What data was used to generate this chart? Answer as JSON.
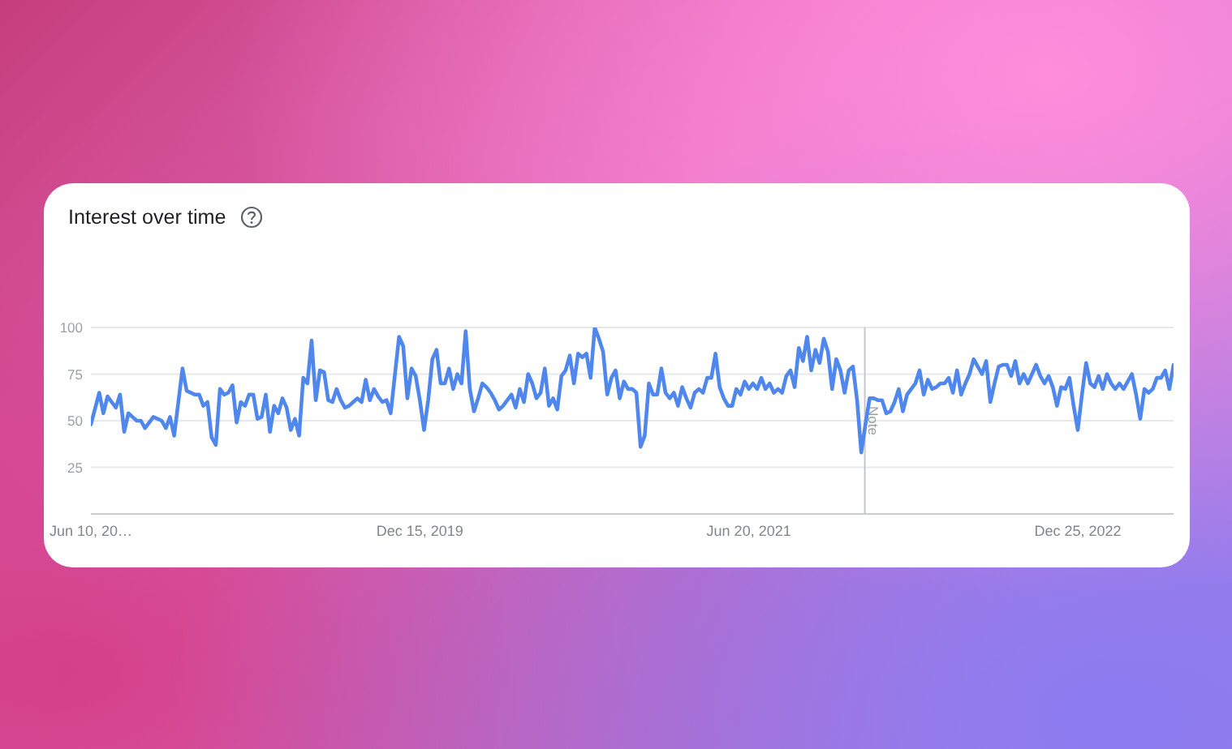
{
  "chart_data": {
    "type": "line",
    "title": "Interest over time",
    "x": [
      "2018-06-10",
      "2018-06-24",
      "2018-07-01",
      "2018-07-08",
      "2018-07-15",
      "2018-07-22",
      "2018-07-29",
      "2018-08-05",
      "2018-08-12",
      "2018-08-19",
      "2018-08-26",
      "2018-09-02",
      "2018-09-09",
      "2018-09-23",
      "2018-09-30",
      "2018-10-07",
      "2018-10-14",
      "2018-10-21",
      "2018-10-28",
      "2018-11-11",
      "2018-11-18",
      "2018-12-02",
      "2018-12-09",
      "2018-12-16",
      "2018-12-23",
      "2018-12-30",
      "2019-01-06",
      "2019-01-13",
      "2019-01-20",
      "2019-01-27",
      "2019-02-03",
      "2019-02-10",
      "2019-02-17",
      "2019-02-24",
      "2019-03-03",
      "2019-03-10",
      "2019-03-17",
      "2019-03-24",
      "2019-03-31",
      "2019-04-07",
      "2019-04-14",
      "2019-04-21",
      "2019-04-28",
      "2019-05-05",
      "2019-05-12",
      "2019-05-19",
      "2019-05-26",
      "2019-06-02",
      "2019-06-09",
      "2019-06-16",
      "2019-06-23",
      "2019-06-30",
      "2019-07-07",
      "2019-07-14",
      "2019-07-21",
      "2019-07-28",
      "2019-08-04",
      "2019-08-11",
      "2019-08-18",
      "2019-08-25",
      "2019-09-01",
      "2019-09-08",
      "2019-09-15",
      "2019-09-22",
      "2019-09-29",
      "2019-10-06",
      "2019-10-13",
      "2019-10-20",
      "2019-10-27",
      "2019-11-10",
      "2019-11-17",
      "2019-11-24",
      "2019-12-01",
      "2019-12-08",
      "2019-12-15",
      "2019-12-22",
      "2019-12-29",
      "2020-01-05",
      "2020-01-12",
      "2020-01-19",
      "2020-01-26",
      "2020-02-02",
      "2020-02-09",
      "2020-02-16",
      "2020-02-23",
      "2020-03-01",
      "2020-03-08",
      "2020-03-15",
      "2020-03-22",
      "2020-03-29",
      "2020-04-05",
      "2020-04-12",
      "2020-04-19",
      "2020-04-26",
      "2020-05-03",
      "2020-05-10",
      "2020-05-17",
      "2020-05-24",
      "2020-05-31",
      "2020-06-07",
      "2020-06-14",
      "2020-06-21",
      "2020-06-28",
      "2020-07-05",
      "2020-07-12",
      "2020-07-19",
      "2020-07-26",
      "2020-08-02",
      "2020-08-09",
      "2020-08-16",
      "2020-08-23",
      "2020-08-30",
      "2020-09-06",
      "2020-09-13",
      "2020-09-20",
      "2020-09-27",
      "2020-10-04",
      "2020-10-11",
      "2020-10-18",
      "2020-10-25",
      "2020-11-01",
      "2020-11-08",
      "2020-11-15",
      "2020-11-22",
      "2020-11-29",
      "2020-12-06",
      "2020-12-13",
      "2020-12-20",
      "2020-12-27",
      "2021-01-03",
      "2021-01-10",
      "2021-01-17",
      "2021-01-24",
      "2021-01-31",
      "2021-02-07",
      "2021-02-14",
      "2021-02-21",
      "2021-02-28",
      "2021-03-07",
      "2021-03-14",
      "2021-03-21",
      "2021-03-28",
      "2021-04-04",
      "2021-04-11",
      "2021-04-18",
      "2021-04-25",
      "2021-05-02",
      "2021-05-09",
      "2021-05-16",
      "2021-05-23",
      "2021-05-30",
      "2021-06-06",
      "2021-06-13",
      "2021-06-20",
      "2021-06-27",
      "2021-07-04",
      "2021-07-11",
      "2021-07-18",
      "2021-07-25",
      "2021-08-01",
      "2021-08-08",
      "2021-08-15",
      "2021-08-22",
      "2021-08-29",
      "2021-09-05",
      "2021-09-12",
      "2021-09-19",
      "2021-09-26",
      "2021-10-03",
      "2021-10-10",
      "2021-10-17",
      "2021-10-24",
      "2021-10-31",
      "2021-11-07",
      "2021-11-14",
      "2021-11-21",
      "2021-11-28",
      "2021-12-05",
      "2021-12-12",
      "2021-12-19",
      "2021-12-26",
      "2022-01-02",
      "2022-01-09",
      "2022-01-16",
      "2022-01-23",
      "2022-01-30",
      "2022-02-06",
      "2022-02-13",
      "2022-02-20",
      "2022-02-27",
      "2022-03-06",
      "2022-03-13",
      "2022-03-20",
      "2022-03-27",
      "2022-04-03",
      "2022-04-10",
      "2022-04-17",
      "2022-04-24",
      "2022-05-01",
      "2022-05-08",
      "2022-05-15",
      "2022-05-22",
      "2022-05-29",
      "2022-06-05",
      "2022-06-12",
      "2022-06-19",
      "2022-06-26",
      "2022-07-03",
      "2022-07-10",
      "2022-07-17",
      "2022-07-24",
      "2022-07-31",
      "2022-08-07",
      "2022-08-14",
      "2022-08-21",
      "2022-08-28",
      "2022-09-04",
      "2022-09-11",
      "2022-09-18",
      "2022-09-25",
      "2022-10-02",
      "2022-10-09",
      "2022-10-16",
      "2022-10-23",
      "2022-10-30",
      "2022-11-06",
      "2022-11-13",
      "2022-11-20",
      "2022-11-27",
      "2022-12-04",
      "2022-12-11",
      "2022-12-18",
      "2022-12-25",
      "2023-01-01",
      "2023-01-08",
      "2023-01-15",
      "2023-01-22",
      "2023-01-29",
      "2023-02-05",
      "2023-02-12",
      "2023-02-19",
      "2023-02-26",
      "2023-03-05",
      "2023-03-12",
      "2023-03-19",
      "2023-03-26",
      "2023-04-02",
      "2023-04-09",
      "2023-04-16",
      "2023-04-23",
      "2023-04-30",
      "2023-05-07",
      "2023-05-14",
      "2023-05-21",
      "2023-05-28",
      "2023-06-04"
    ],
    "values": [
      48,
      65,
      54,
      63,
      60,
      57,
      64,
      44,
      54,
      52,
      50,
      50,
      46,
      52,
      51,
      50,
      46,
      52,
      42,
      78,
      66,
      64,
      64,
      58,
      60,
      41,
      37,
      67,
      64,
      65,
      69,
      49,
      60,
      58,
      64,
      64,
      51,
      52,
      64,
      44,
      58,
      54,
      62,
      57,
      45,
      51,
      42,
      73,
      70,
      93,
      61,
      77,
      76,
      61,
      60,
      67,
      61,
      57,
      58,
      60,
      62,
      60,
      72,
      61,
      67,
      63,
      60,
      61,
      54,
      95,
      90,
      62,
      78,
      74,
      61,
      45,
      61,
      83,
      88,
      70,
      70,
      78,
      67,
      75,
      70,
      98,
      67,
      55,
      62,
      70,
      68,
      65,
      61,
      56,
      58,
      61,
      64,
      57,
      67,
      60,
      75,
      70,
      62,
      65,
      78,
      58,
      62,
      56,
      74,
      77,
      85,
      70,
      86,
      84,
      86,
      73,
      100,
      94,
      87,
      64,
      73,
      77,
      62,
      71,
      67,
      67,
      65,
      36,
      42,
      70,
      64,
      64,
      78,
      65,
      62,
      65,
      58,
      68,
      62,
      57,
      65,
      67,
      65,
      73,
      73,
      86,
      68,
      62,
      58,
      58,
      67,
      64,
      71,
      67,
      70,
      67,
      73,
      67,
      70,
      65,
      67,
      65,
      74,
      77,
      68,
      89,
      82,
      95,
      77,
      88,
      81,
      94,
      87,
      67,
      83,
      77,
      65,
      77,
      79,
      61,
      33,
      48,
      62,
      62,
      61,
      61,
      54,
      55,
      60,
      67,
      55,
      64,
      67,
      70,
      77,
      64,
      72,
      67,
      68,
      70,
      70,
      73,
      65,
      77,
      64,
      70,
      75,
      83,
      79,
      75,
      82,
      60,
      70,
      79,
      80,
      80,
      74,
      82,
      70,
      75,
      70,
      75,
      80,
      74,
      70,
      74,
      68,
      58,
      68,
      67,
      73,
      58,
      45,
      64,
      81,
      70,
      68,
      74,
      67,
      75,
      70,
      67,
      70,
      67,
      71,
      75,
      64,
      51,
      67,
      65,
      67,
      73,
      73,
      77,
      67,
      80
    ],
    "color": "#5087ec",
    "xlim": [
      "2018-06-10",
      "2023-06-04"
    ],
    "xticks": [
      {
        "value": "2018-06-10",
        "label": "Jun 10, 20…"
      },
      {
        "value": "2019-12-15",
        "label": "Dec 15, 2019"
      },
      {
        "value": "2021-06-20",
        "label": "Jun 20, 2021"
      },
      {
        "value": "2022-12-25",
        "label": "Dec 25, 2022"
      }
    ],
    "ylim": [
      0,
      100
    ],
    "yticks": [
      25,
      50,
      75,
      100
    ],
    "grid": "y",
    "ref_lines": [
      {
        "axis": "x",
        "value": "2022-01-01",
        "label": "Note",
        "color": "#c4c7cc"
      }
    ]
  }
}
